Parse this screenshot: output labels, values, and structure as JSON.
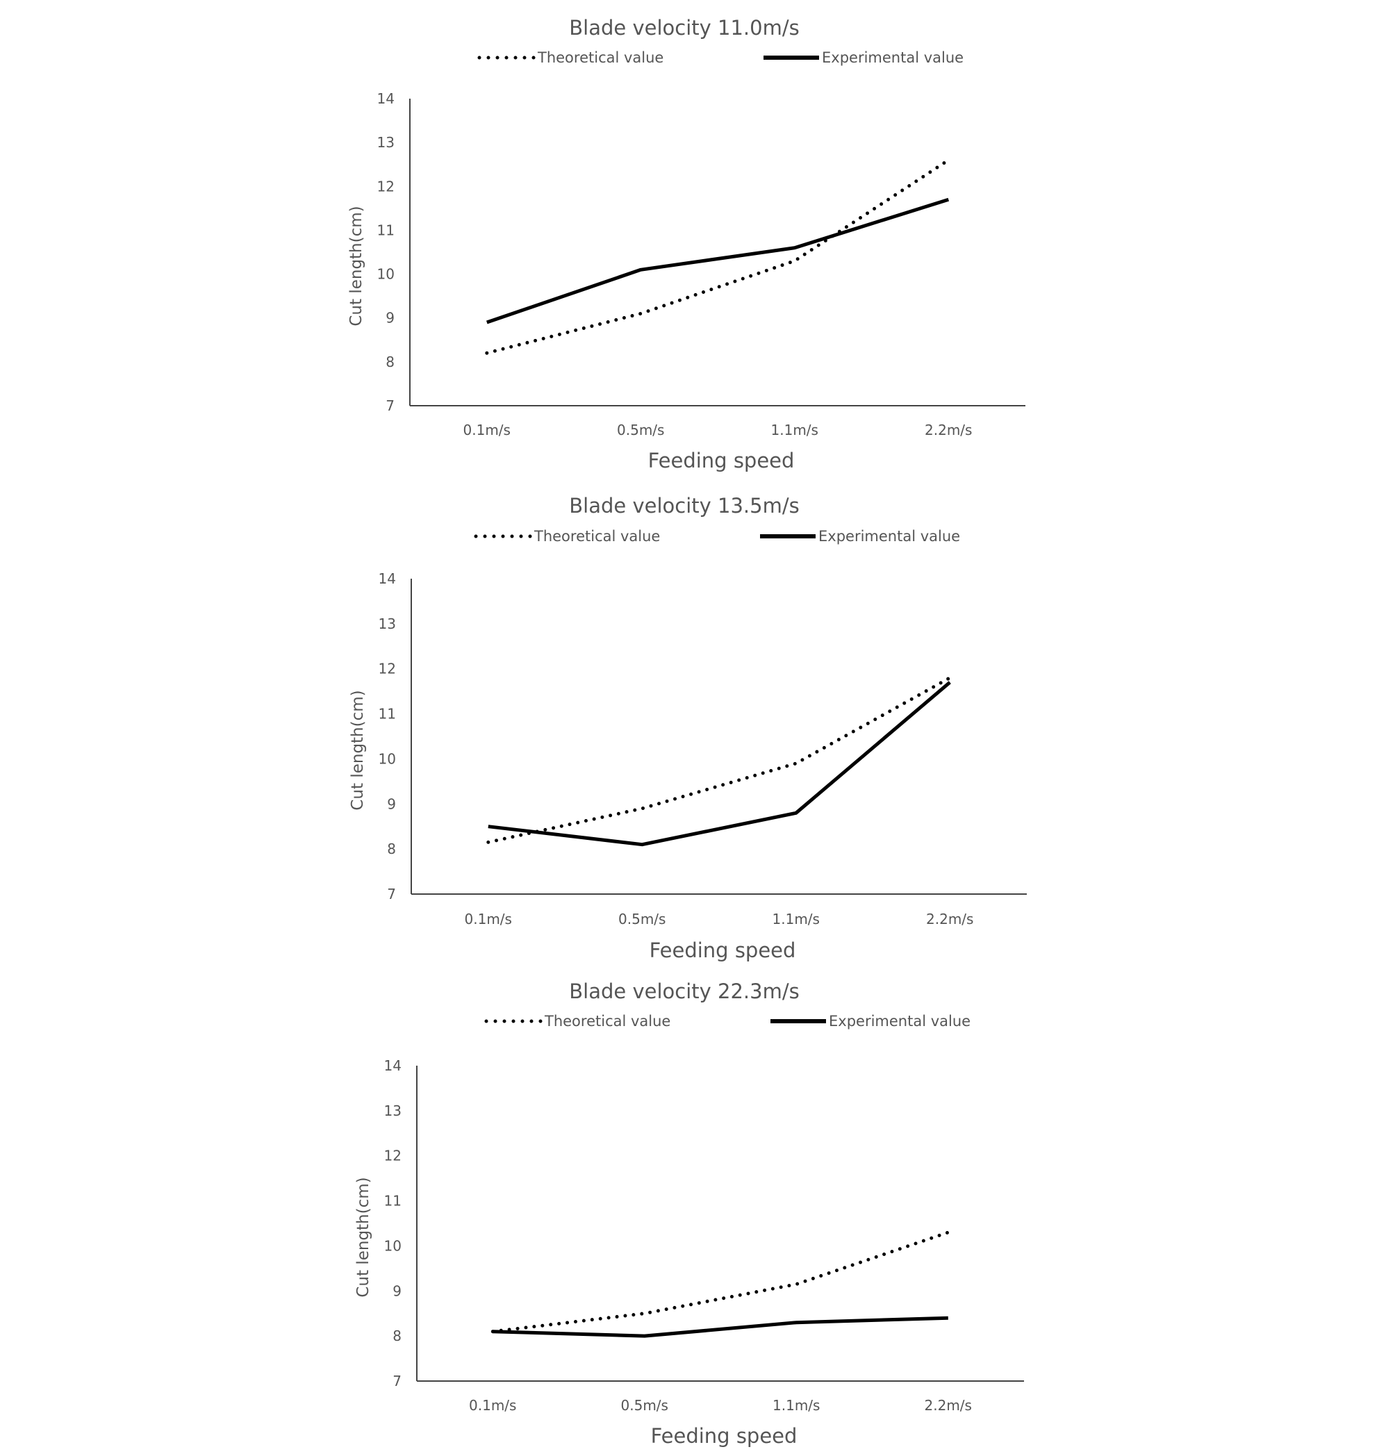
{
  "chart_data": [
    {
      "type": "line",
      "title": "Blade velocity 11.0m/s",
      "xlabel": "Feeding speed",
      "ylabel": "Cut length(cm)",
      "categories": [
        "0.1m/s",
        "0.5m/s",
        "1.1m/s",
        "2.2m/s"
      ],
      "ylim": [
        7,
        14
      ],
      "yticks": [
        "7",
        "8",
        "9",
        "10",
        "11",
        "12",
        "13",
        "14"
      ],
      "grid": false,
      "legend": "top-center",
      "series": [
        {
          "name": "Theoretical value",
          "style": "dotted",
          "color": "#000000",
          "values": [
            8.2,
            9.1,
            10.3,
            12.6
          ]
        },
        {
          "name": "Experimental value",
          "style": "solid",
          "color": "#000000",
          "values": [
            8.9,
            10.1,
            10.6,
            11.7
          ]
        }
      ]
    },
    {
      "type": "line",
      "title": "Blade velocity 13.5m/s",
      "xlabel": "Feeding speed",
      "ylabel": "Cut length(cm)",
      "categories": [
        "0.1m/s",
        "0.5m/s",
        "1.1m/s",
        "2.2m/s"
      ],
      "ylim": [
        7,
        14
      ],
      "yticks": [
        "7",
        "8",
        "9",
        "10",
        "11",
        "12",
        "13",
        "14"
      ],
      "grid": false,
      "legend": "top-center",
      "series": [
        {
          "name": "Theoretical value",
          "style": "dotted",
          "color": "#000000",
          "values": [
            8.15,
            8.9,
            9.9,
            11.8
          ]
        },
        {
          "name": "Experimental value",
          "style": "solid",
          "color": "#000000",
          "values": [
            8.5,
            8.1,
            8.8,
            11.7
          ]
        }
      ]
    },
    {
      "type": "line",
      "title": "Blade velocity 22.3m/s",
      "xlabel": "Feeding speed",
      "ylabel": "Cut length(cm)",
      "categories": [
        "0.1m/s",
        "0.5m/s",
        "1.1m/s",
        "2.2m/s"
      ],
      "ylim": [
        7,
        14
      ],
      "yticks": [
        "7",
        "8",
        "9",
        "10",
        "11",
        "12",
        "13",
        "14"
      ],
      "grid": false,
      "legend": "top-center",
      "series": [
        {
          "name": "Theoretical value",
          "style": "dotted",
          "color": "#000000",
          "values": [
            8.1,
            8.5,
            9.15,
            10.3
          ]
        },
        {
          "name": "Experimental value",
          "style": "solid",
          "color": "#000000",
          "values": [
            8.1,
            8.0,
            8.3,
            8.4
          ]
        }
      ]
    }
  ]
}
